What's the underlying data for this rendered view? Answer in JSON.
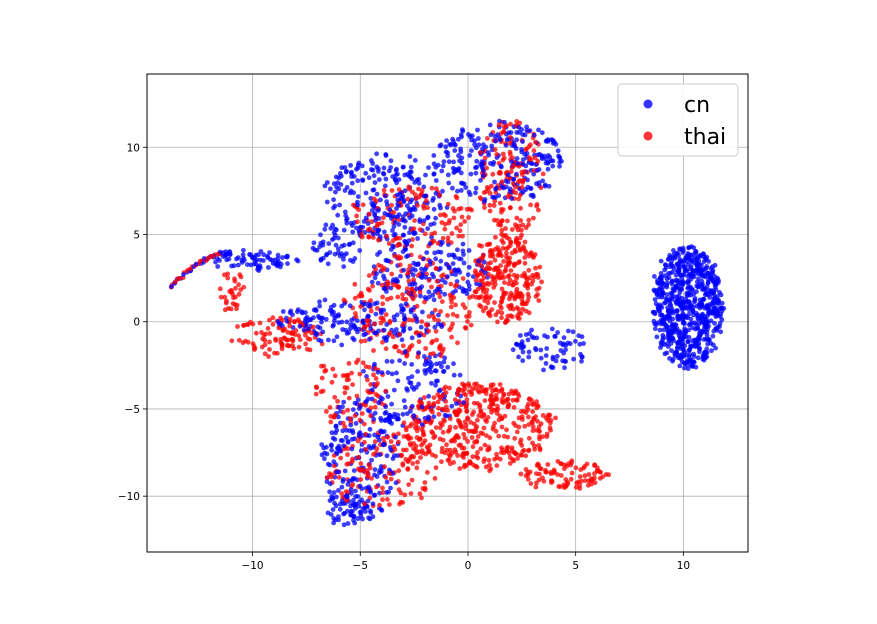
{
  "chart_data": {
    "type": "scatter",
    "title": "",
    "xlabel": "",
    "ylabel": "",
    "xlim": [
      -14.9,
      13
    ],
    "ylim": [
      -13.2,
      14.2
    ],
    "xticks": [
      -10,
      -5,
      0,
      5,
      10
    ],
    "yticks": [
      -10,
      -5,
      0,
      5,
      10
    ],
    "xtick_labels": [
      "−10",
      "−5",
      "0",
      "5",
      "10"
    ],
    "ytick_labels": [
      "−10",
      "−5",
      "0",
      "5",
      "10"
    ],
    "grid": true,
    "legend": {
      "placement": "top-right"
    },
    "series": [
      {
        "name": "cn",
        "color": "#0000ff",
        "clusters": [
          {
            "cx": 10.2,
            "cy": 0.8,
            "rx": 1.6,
            "ry": 3.5,
            "n": 700
          },
          {
            "cx": 1.4,
            "cy": 9.2,
            "rx": 3,
            "ry": 2.3,
            "n": 240
          },
          {
            "cx": -3.8,
            "cy": 7.2,
            "rx": 2.8,
            "ry": 2.5,
            "n": 230
          },
          {
            "cx": -6.2,
            "cy": 4.5,
            "rx": 1.3,
            "ry": 1.4,
            "n": 55
          },
          {
            "cx": -1.8,
            "cy": 3,
            "rx": 2.8,
            "ry": 1.8,
            "n": 160
          },
          {
            "cx": -5,
            "cy": 0,
            "rx": 4,
            "ry": 1.2,
            "n": 170
          },
          {
            "cx": -5,
            "cy": -7.8,
            "rx": 1.8,
            "ry": 3.6,
            "n": 210
          },
          {
            "cx": -2.5,
            "cy": -3.8,
            "rx": 2.4,
            "ry": 2.3,
            "n": 120
          },
          {
            "cx": 3.8,
            "cy": -1.5,
            "rx": 1.8,
            "ry": 1.2,
            "n": 70
          },
          {
            "cx": -9.8,
            "cy": 3.5,
            "rx": 2,
            "ry": 0.5,
            "n": 70
          },
          {
            "cx": -5.5,
            "cy": -10.8,
            "rx": 1,
            "ry": 1,
            "n": 45
          }
        ],
        "arcs": [
          {
            "x1": -13.8,
            "y1": 2,
            "x2": -11,
            "y2": 4,
            "n": 24
          }
        ]
      },
      {
        "name": "thai",
        "color": "#ff0000",
        "clusters": [
          {
            "cx": 0.5,
            "cy": -6,
            "rx": 3.5,
            "ry": 2.5,
            "n": 430
          },
          {
            "cx": 1.8,
            "cy": 2.5,
            "rx": 1.6,
            "ry": 2.6,
            "n": 260
          },
          {
            "cx": 2,
            "cy": 8.2,
            "rx": 1.6,
            "ry": 3.3,
            "n": 160
          },
          {
            "cx": -2.6,
            "cy": 0.8,
            "rx": 3,
            "ry": 3,
            "n": 210
          },
          {
            "cx": -2.5,
            "cy": 6,
            "rx": 3,
            "ry": 1.8,
            "n": 130
          },
          {
            "cx": -8.8,
            "cy": -0.8,
            "rx": 2.1,
            "ry": 1.1,
            "n": 100
          },
          {
            "cx": -4,
            "cy": -8.5,
            "rx": 2.6,
            "ry": 2.2,
            "n": 140
          },
          {
            "cx": 4.5,
            "cy": -8.8,
            "rx": 2.1,
            "ry": 0.8,
            "n": 90
          },
          {
            "cx": -5.5,
            "cy": -4,
            "rx": 1.8,
            "ry": 2,
            "n": 80
          },
          {
            "cx": -11,
            "cy": 1.8,
            "rx": 0.6,
            "ry": 1.2,
            "n": 30
          }
        ],
        "arcs": [
          {
            "x1": -13.8,
            "y1": 2,
            "x2": -11.5,
            "y2": 3.8,
            "n": 22
          }
        ]
      }
    ]
  }
}
